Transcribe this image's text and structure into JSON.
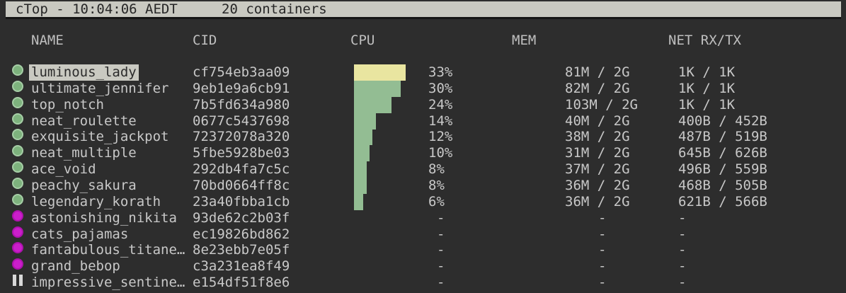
{
  "header": {
    "title": "cTop - 10:04:06 AEDT",
    "container_count": "20 containers"
  },
  "columns": {
    "name": "NAME",
    "cid": "CID",
    "cpu": "CPU",
    "mem": "MEM",
    "net": "NET RX/TX"
  },
  "colors": {
    "background": "#2d2d2d",
    "titlebar_bg": "#c9c9c1",
    "titlebar_text": "#262626",
    "text": "#c8c8c8",
    "selected_bg": "#c9c9c1",
    "selected_text": "#2b2b2b",
    "gauge_yellow": "#e9e5a0",
    "gauge_green": "#93bd93",
    "status_running": "#7db27d",
    "status_stopped": "#cb1ecb",
    "status_paused": "#d8d8d8"
  },
  "icons": {
    "running": "running-status-icon",
    "stopped": "stopped-status-icon",
    "paused": "paused-status-icon"
  },
  "rows": [
    {
      "name": "luminous_lady",
      "cid": "cf754eb3aa09",
      "cpu": "33%",
      "cpu_pct": 33,
      "mem": "81M / 2G",
      "net": "1K / 1K",
      "status": "running",
      "selected": true,
      "gauge": "yellow"
    },
    {
      "name": "ultimate_jennifer",
      "cid": "9eb1e9a6cb91",
      "cpu": "30%",
      "cpu_pct": 30,
      "mem": "82M / 2G",
      "net": "1K / 1K",
      "status": "running",
      "selected": false,
      "gauge": "green"
    },
    {
      "name": "top_notch",
      "cid": "7b5fd634a980",
      "cpu": "24%",
      "cpu_pct": 24,
      "mem": "103M / 2G",
      "net": "1K / 1K",
      "status": "running",
      "selected": false,
      "gauge": "green"
    },
    {
      "name": "neat_roulette",
      "cid": "0677c5437698",
      "cpu": "14%",
      "cpu_pct": 14,
      "mem": "40M / 2G",
      "net": "400B / 452B",
      "status": "running",
      "selected": false,
      "gauge": "green"
    },
    {
      "name": "exquisite_jackpot",
      "cid": "72372078a320",
      "cpu": "12%",
      "cpu_pct": 12,
      "mem": "38M / 2G",
      "net": "487B / 519B",
      "status": "running",
      "selected": false,
      "gauge": "green"
    },
    {
      "name": "neat_multiple",
      "cid": "5fbe5928be03",
      "cpu": "10%",
      "cpu_pct": 10,
      "mem": "31M / 2G",
      "net": "645B / 626B",
      "status": "running",
      "selected": false,
      "gauge": "green"
    },
    {
      "name": "ace_void",
      "cid": "292db4fa7c5c",
      "cpu": "8%",
      "cpu_pct": 8,
      "mem": "37M / 2G",
      "net": "496B / 559B",
      "status": "running",
      "selected": false,
      "gauge": "green"
    },
    {
      "name": "peachy_sakura",
      "cid": "70bd0664ff8c",
      "cpu": "8%",
      "cpu_pct": 8,
      "mem": "36M / 2G",
      "net": "468B / 505B",
      "status": "running",
      "selected": false,
      "gauge": "green"
    },
    {
      "name": "legendary_korath",
      "cid": "23a40fbba1cb",
      "cpu": "6%",
      "cpu_pct": 6,
      "mem": "36M / 2G",
      "net": "621B / 566B",
      "status": "running",
      "selected": false,
      "gauge": "green"
    },
    {
      "name": "astonishing_nikita",
      "cid": "93de62c2b03f",
      "cpu": "-",
      "cpu_pct": 0,
      "mem": "-",
      "net": "-",
      "status": "stopped",
      "selected": false,
      "gauge": "none"
    },
    {
      "name": "cats_pajamas",
      "cid": "ec19826bd862",
      "cpu": "-",
      "cpu_pct": 0,
      "mem": "-",
      "net": "-",
      "status": "stopped",
      "selected": false,
      "gauge": "none"
    },
    {
      "name": "fantabulous_titane…",
      "cid": "8e23ebb7e05f",
      "cpu": "-",
      "cpu_pct": 0,
      "mem": "-",
      "net": "-",
      "status": "stopped",
      "selected": false,
      "gauge": "none"
    },
    {
      "name": "grand_bebop",
      "cid": "c3a231ea8f49",
      "cpu": "-",
      "cpu_pct": 0,
      "mem": "-",
      "net": "-",
      "status": "stopped",
      "selected": false,
      "gauge": "none"
    },
    {
      "name": "impressive_sentine…",
      "cid": "e154df51f8e6",
      "cpu": "-",
      "cpu_pct": 0,
      "mem": "-",
      "net": "-",
      "status": "paused",
      "selected": false,
      "gauge": "none"
    }
  ]
}
